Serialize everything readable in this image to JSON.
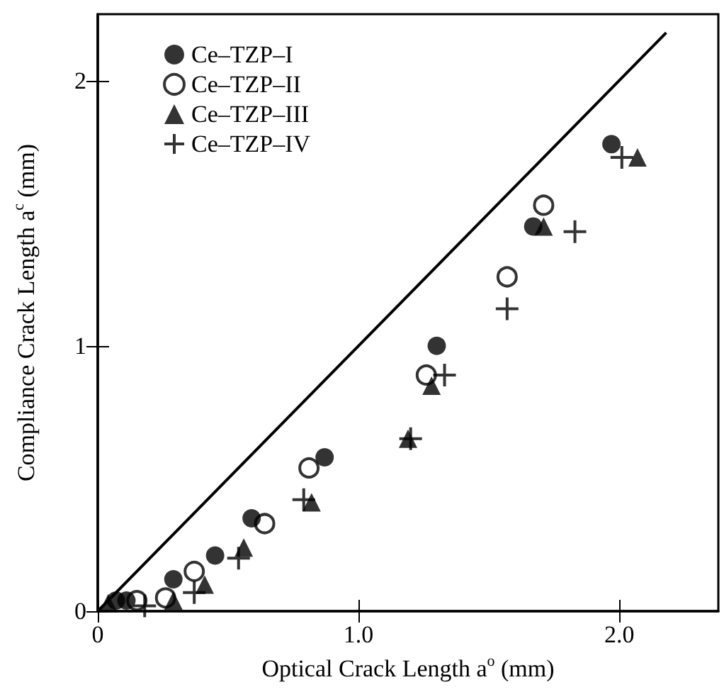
{
  "chart_data": {
    "type": "scatter",
    "xlabel": "Optical Crack Length a$^{o}$ (mm)",
    "ylabel": "Compliance Crack Length a$^{c}$ (mm)",
    "xlim": [
      0,
      2.38
    ],
    "xticks": [
      0,
      {
        "value": 1,
        "label": "1.0"
      },
      {
        "value": 2,
        "label": "2.0"
      }
    ],
    "ylim": [
      0,
      2.25
    ],
    "yticks": [
      0,
      1,
      2
    ],
    "grid": false,
    "legend": "top left",
    "series": [
      {
        "name": "Ce–TZP–I",
        "color": "#000000",
        "marker": "circle",
        "x": [
          0.07,
          0.11,
          0.29,
          0.45,
          0.59,
          0.87,
          1.3,
          1.67,
          1.97
        ],
        "values": [
          0.04,
          0.04,
          0.12,
          0.21,
          0.35,
          0.58,
          1.0,
          1.45,
          1.76
        ]
      },
      {
        "name": "Ce–TZP–II",
        "color": "#000000",
        "marker": "open circle",
        "x": [
          0.15,
          0.26,
          0.37,
          0.64,
          0.81,
          1.26,
          1.57,
          1.71
        ],
        "values": [
          0.04,
          0.05,
          0.15,
          0.33,
          0.54,
          0.89,
          1.26,
          1.53
        ]
      },
      {
        "name": "Ce–TZP–III",
        "color": "#000000",
        "marker": "triangle",
        "x": [
          0.04,
          0.29,
          0.41,
          0.56,
          0.82,
          1.19,
          1.28,
          1.71,
          2.07
        ],
        "values": [
          0.03,
          0.04,
          0.1,
          0.24,
          0.41,
          0.65,
          0.85,
          1.45,
          1.71
        ]
      },
      {
        "name": "Ce–TZP–IV",
        "color": "#000000",
        "marker": "cross",
        "x": [
          0.18,
          0.37,
          0.54,
          0.79,
          1.2,
          1.33,
          1.57,
          1.83,
          2.01
        ],
        "values": [
          0.02,
          0.07,
          0.2,
          0.42,
          0.65,
          0.89,
          1.14,
          1.43,
          1.71
        ]
      },
      {
        "type": "line",
        "color": "#000000",
        "marker": "none",
        "line_style": "solid",
        "x": [
          0,
          2.18
        ],
        "values": [
          0,
          2.18
        ]
      }
    ]
  }
}
